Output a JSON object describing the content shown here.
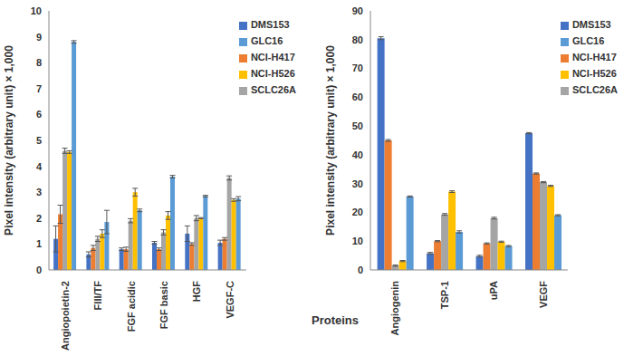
{
  "chart_data": [
    {
      "type": "bar",
      "x_label": "Proteins",
      "y_label": "Pixel intensity (arbitrary unit) × 1,000",
      "categories": [
        "Angiopoietin-2",
        "FIII/TF",
        "FGF acidic",
        "FGF basic",
        "HGF",
        "VEGF-C"
      ],
      "series": [
        {
          "name": "DMS153",
          "color": "#4472c4",
          "values": [
            1.2,
            0.6,
            0.8,
            1.05,
            1.4,
            1.05
          ],
          "errors": [
            0.5,
            0.1,
            0.05,
            0.05,
            0.3,
            0.1
          ]
        },
        {
          "name": "NCI-H417",
          "color": "#ed7d31",
          "values": [
            2.15,
            0.85,
            0.8,
            0.8,
            1.0,
            1.2
          ],
          "errors": [
            0.35,
            0.1,
            0.08,
            0.05,
            0.05,
            0.05
          ]
        },
        {
          "name": "SCLC26A",
          "color": "#a5a5a5",
          "values": [
            4.6,
            1.2,
            1.9,
            1.45,
            2.0,
            3.55
          ],
          "errors": [
            0.1,
            0.1,
            0.08,
            0.1,
            0.1,
            0.08
          ]
        },
        {
          "name": "NCI-H526",
          "color": "#ffc000",
          "values": [
            4.55,
            1.4,
            3.0,
            2.1,
            2.0,
            2.7
          ],
          "errors": [
            0.05,
            0.15,
            0.15,
            0.15,
            0.02,
            0.05
          ]
        },
        {
          "name": "GLC16",
          "color": "#5b9bd5",
          "values": [
            8.8,
            1.85,
            2.3,
            3.6,
            2.85,
            2.75
          ],
          "errors": [
            0.05,
            0.45,
            0.05,
            0.05,
            0.03,
            0.08
          ]
        }
      ],
      "ylim": [
        0,
        10
      ],
      "yticks": [
        0,
        1,
        2,
        3,
        4,
        5,
        6,
        7,
        8,
        9,
        10
      ],
      "legend": "upper right",
      "grid": false
    },
    {
      "type": "bar",
      "y_label": "Pixel intensity (arbitrary unit) × 1,000",
      "categories": [
        "Angiogenin",
        "TSP-1",
        "uPA",
        "VEGF"
      ],
      "series": [
        {
          "name": "DMS153",
          "color": "#4472c4",
          "values": [
            80.5,
            5.8,
            4.8,
            47.5
          ],
          "errors": [
            0.5,
            0.3,
            0.3,
            0.2
          ]
        },
        {
          "name": "NCI-H417",
          "color": "#ed7d31",
          "values": [
            45,
            10,
            9.2,
            33.5
          ],
          "errors": [
            0.3,
            0.2,
            0.2,
            0.2
          ]
        },
        {
          "name": "SCLC26A",
          "color": "#a5a5a5",
          "values": [
            1.5,
            19.3,
            18,
            30.5
          ],
          "errors": [
            0.2,
            0.3,
            0.3,
            0.2
          ]
        },
        {
          "name": "NCI-H526",
          "color": "#ffc000",
          "values": [
            3.1,
            27.2,
            9.8,
            29.2
          ],
          "errors": [
            0.2,
            0.3,
            0.2,
            0.2
          ]
        },
        {
          "name": "GLC16",
          "color": "#5b9bd5",
          "values": [
            25.5,
            13.2,
            8.3,
            19
          ],
          "errors": [
            0.2,
            0.4,
            0.2,
            0.2
          ]
        }
      ],
      "ylim": [
        0,
        90
      ],
      "yticks": [
        0,
        10,
        20,
        30,
        40,
        50,
        60,
        70,
        80,
        90
      ],
      "legend": "upper right",
      "grid": false
    }
  ]
}
